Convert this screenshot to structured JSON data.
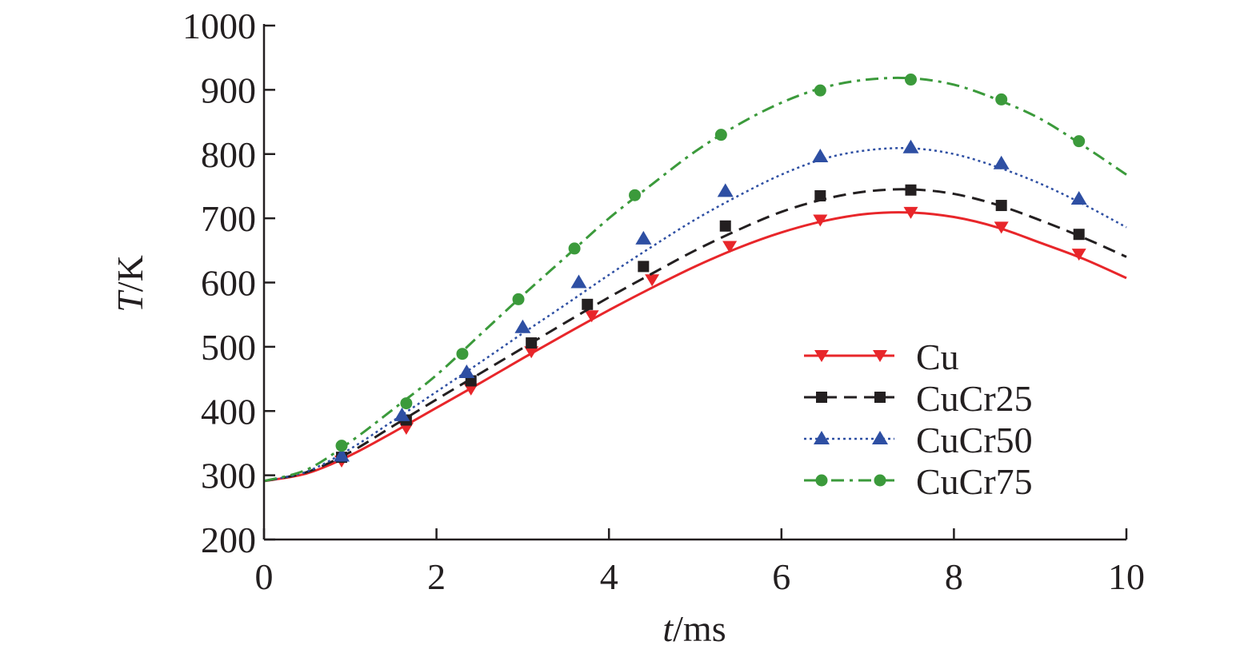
{
  "chart_data": {
    "type": "line",
    "xlabel": {
      "italic": "t",
      "rest": "/ms"
    },
    "ylabel": {
      "italic": "T",
      "rest": "/K"
    },
    "xlim": [
      0,
      10
    ],
    "ylim": [
      200,
      1000
    ],
    "xticks": [
      0,
      2,
      4,
      6,
      8,
      10
    ],
    "yticks": [
      200,
      300,
      400,
      500,
      600,
      700,
      800,
      900,
      1000
    ],
    "xtick_labels": [
      "0",
      "2",
      "4",
      "6",
      "8",
      "10"
    ],
    "ytick_labels": [
      "200",
      "300",
      "400",
      "500",
      "600",
      "700",
      "800",
      "900",
      "1000"
    ],
    "grid": false,
    "legend_position": "lower-right",
    "series": [
      {
        "name": "Cu",
        "color": "#e8262a",
        "line_style": "solid",
        "marker": "triangle-down",
        "x": [
          0,
          0.5,
          1,
          1.5,
          2,
          2.5,
          3,
          3.5,
          4,
          4.5,
          5,
          5.5,
          6,
          6.5,
          7,
          7.5,
          8,
          8.5,
          9,
          9.5,
          10
        ],
        "y": [
          291,
          303,
          331,
          367,
          405,
          443,
          482,
          520,
          557,
          592,
          625,
          654,
          678,
          696,
          707,
          709,
          702,
          686,
          662,
          637,
          607
        ],
        "markers_x": [
          0.9,
          1.65,
          2.4,
          3.1,
          3.8,
          4.5,
          5.4,
          6.45,
          7.5,
          8.55,
          9.45
        ],
        "markers_y": [
          322,
          373,
          434,
          492,
          548,
          604,
          656,
          697,
          709,
          686,
          644
        ]
      },
      {
        "name": "CuCr25",
        "color": "#231f20",
        "line_style": "dashed",
        "marker": "square",
        "x": [
          0,
          0.5,
          1,
          1.5,
          2,
          2.5,
          3,
          3.5,
          4,
          4.5,
          5,
          5.5,
          6,
          6.5,
          7,
          7.5,
          8,
          8.5,
          9,
          9.5,
          10
        ],
        "y": [
          291,
          305,
          336,
          377,
          418,
          458,
          498,
          538,
          577,
          614,
          650,
          682,
          710,
          730,
          742,
          745,
          738,
          721,
          697,
          670,
          640
        ],
        "markers_x": [
          0.9,
          1.65,
          2.4,
          3.1,
          3.75,
          4.4,
          5.35,
          6.45,
          7.5,
          8.55,
          9.45
        ],
        "markers_y": [
          328,
          386,
          447,
          506,
          566,
          625,
          688,
          735,
          744,
          720,
          675
        ]
      },
      {
        "name": "CuCr50",
        "color": "#2e4fa3",
        "line_style": "dotted",
        "marker": "triangle-up",
        "x": [
          0,
          0.5,
          1,
          1.5,
          2,
          2.5,
          3,
          3.5,
          4,
          4.5,
          5,
          5.5,
          6,
          6.5,
          7,
          7.5,
          8,
          8.5,
          9,
          9.5,
          10
        ],
        "y": [
          291,
          306,
          341,
          385,
          430,
          475,
          521,
          566,
          612,
          656,
          698,
          735,
          768,
          793,
          806,
          809,
          800,
          780,
          754,
          722,
          686
        ],
        "markers_x": [
          0.9,
          1.6,
          2.35,
          3.0,
          3.65,
          4.4,
          5.35,
          6.45,
          7.5,
          8.55,
          9.45
        ],
        "markers_y": [
          330,
          393,
          460,
          530,
          600,
          668,
          742,
          796,
          810,
          785,
          730
        ]
      },
      {
        "name": "CuCr75",
        "color": "#3b9a3b",
        "line_style": "dash-dot",
        "marker": "circle",
        "x": [
          0,
          0.5,
          1,
          1.5,
          2,
          2.5,
          3,
          3.5,
          4,
          4.5,
          5,
          5.5,
          6,
          6.5,
          7,
          7.5,
          8,
          8.5,
          9,
          9.5,
          10
        ],
        "y": [
          291,
          309,
          352,
          403,
          456,
          518,
          580,
          640,
          700,
          753,
          804,
          846,
          880,
          904,
          916,
          918,
          908,
          885,
          855,
          813,
          768
        ],
        "markers_x": [
          0.9,
          1.65,
          2.3,
          2.95,
          3.6,
          4.3,
          5.3,
          6.45,
          7.5,
          8.55,
          9.45
        ],
        "markers_y": [
          346,
          412,
          489,
          574,
          653,
          736,
          830,
          899,
          916,
          885,
          820
        ]
      }
    ]
  }
}
